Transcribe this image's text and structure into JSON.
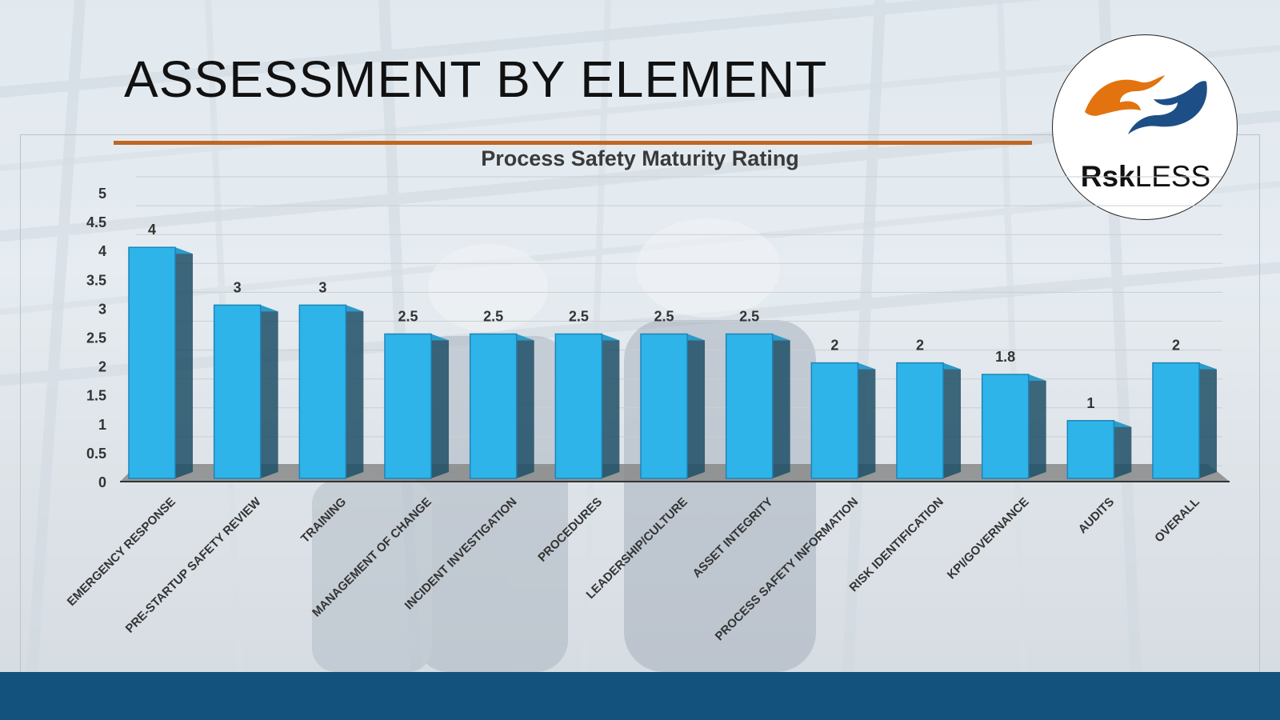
{
  "slide": {
    "title": "ASSESSMENT BY ELEMENT",
    "accent_color": "#c0661f",
    "footer_color": "#14527e"
  },
  "logo": {
    "text_bold": "Rsk",
    "text_regular": "LESS",
    "orange_color": "#e2730e",
    "blue_color": "#1d4f86"
  },
  "chart_data": {
    "type": "bar",
    "title": "Process Safety Maturity Rating",
    "categories": [
      "EMERGENCY RESPONSE",
      "PRE-STARTUP SAFETY REVIEW",
      "TRAINING",
      "MANAGEMENT OF CHANGE",
      "INCIDENT INVESTIGATION",
      "PROCEDURES",
      "LEADERSHIP/CULTURE",
      "ASSET INTEGRITY",
      "PROCESS SAFETY INFORMATION",
      "RISK IDENTIFICATION",
      "KPI/GOVERNANCE",
      "AUDITS",
      "OVERALL"
    ],
    "values": [
      4,
      3,
      3,
      2.5,
      2.5,
      2.5,
      2.5,
      2.5,
      2,
      2,
      1.8,
      1,
      2
    ],
    "data_labels": [
      "4",
      "3",
      "3",
      "2.5",
      "2.5",
      "2.5",
      "2.5",
      "2.5",
      "2",
      "2",
      "1.8",
      "1",
      "2"
    ],
    "ylim": [
      0,
      5
    ],
    "yticks": [
      "0",
      "0.5",
      "1",
      "1.5",
      "2",
      "2.5",
      "3",
      "3.5",
      "4",
      "4.5",
      "5"
    ],
    "grid": true,
    "style": "3d",
    "bar_color": "#2fb4ea"
  }
}
